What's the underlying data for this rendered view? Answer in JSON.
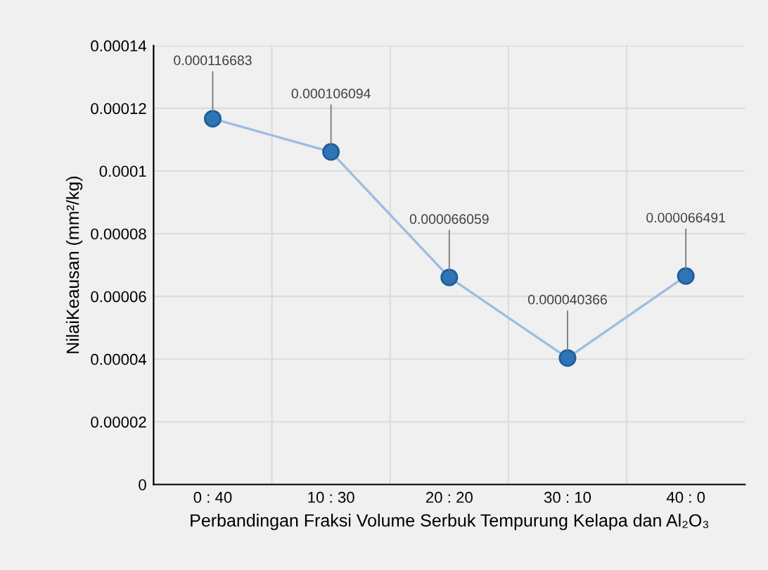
{
  "chart_data": {
    "type": "line",
    "xlabel": "Perbandingan Fraksi Volume Serbuk Tempurung Kelapa dan Al₂O₃",
    "ylabel": "NilaiKeausan (mm²/kg)",
    "categories": [
      "0 : 40",
      "10 : 30",
      "20 : 20",
      "30 : 10",
      "40 : 0"
    ],
    "series": [
      {
        "color": "#2e75b6",
        "values": [
          0.000116683,
          0.000106094,
          6.6059e-05,
          4.0366e-05,
          6.6491e-05
        ],
        "value_labels": [
          "0.000116683",
          "0.000106094",
          "0.000066059",
          "0.000040366",
          "0.000066491"
        ]
      }
    ],
    "ylim": [
      0,
      0.00014
    ],
    "yticks": [
      0,
      {
        "value": 2e-05,
        "label": "0.00002"
      },
      {
        "value": 4e-05,
        "label": "0.00004"
      },
      {
        "value": 6e-05,
        "label": "0.00006"
      },
      {
        "value": 8e-05,
        "label": "0.00008"
      },
      0.0001,
      0.00012,
      0.00014
    ],
    "grid": true,
    "marker": "circle",
    "line_style": "solid"
  }
}
